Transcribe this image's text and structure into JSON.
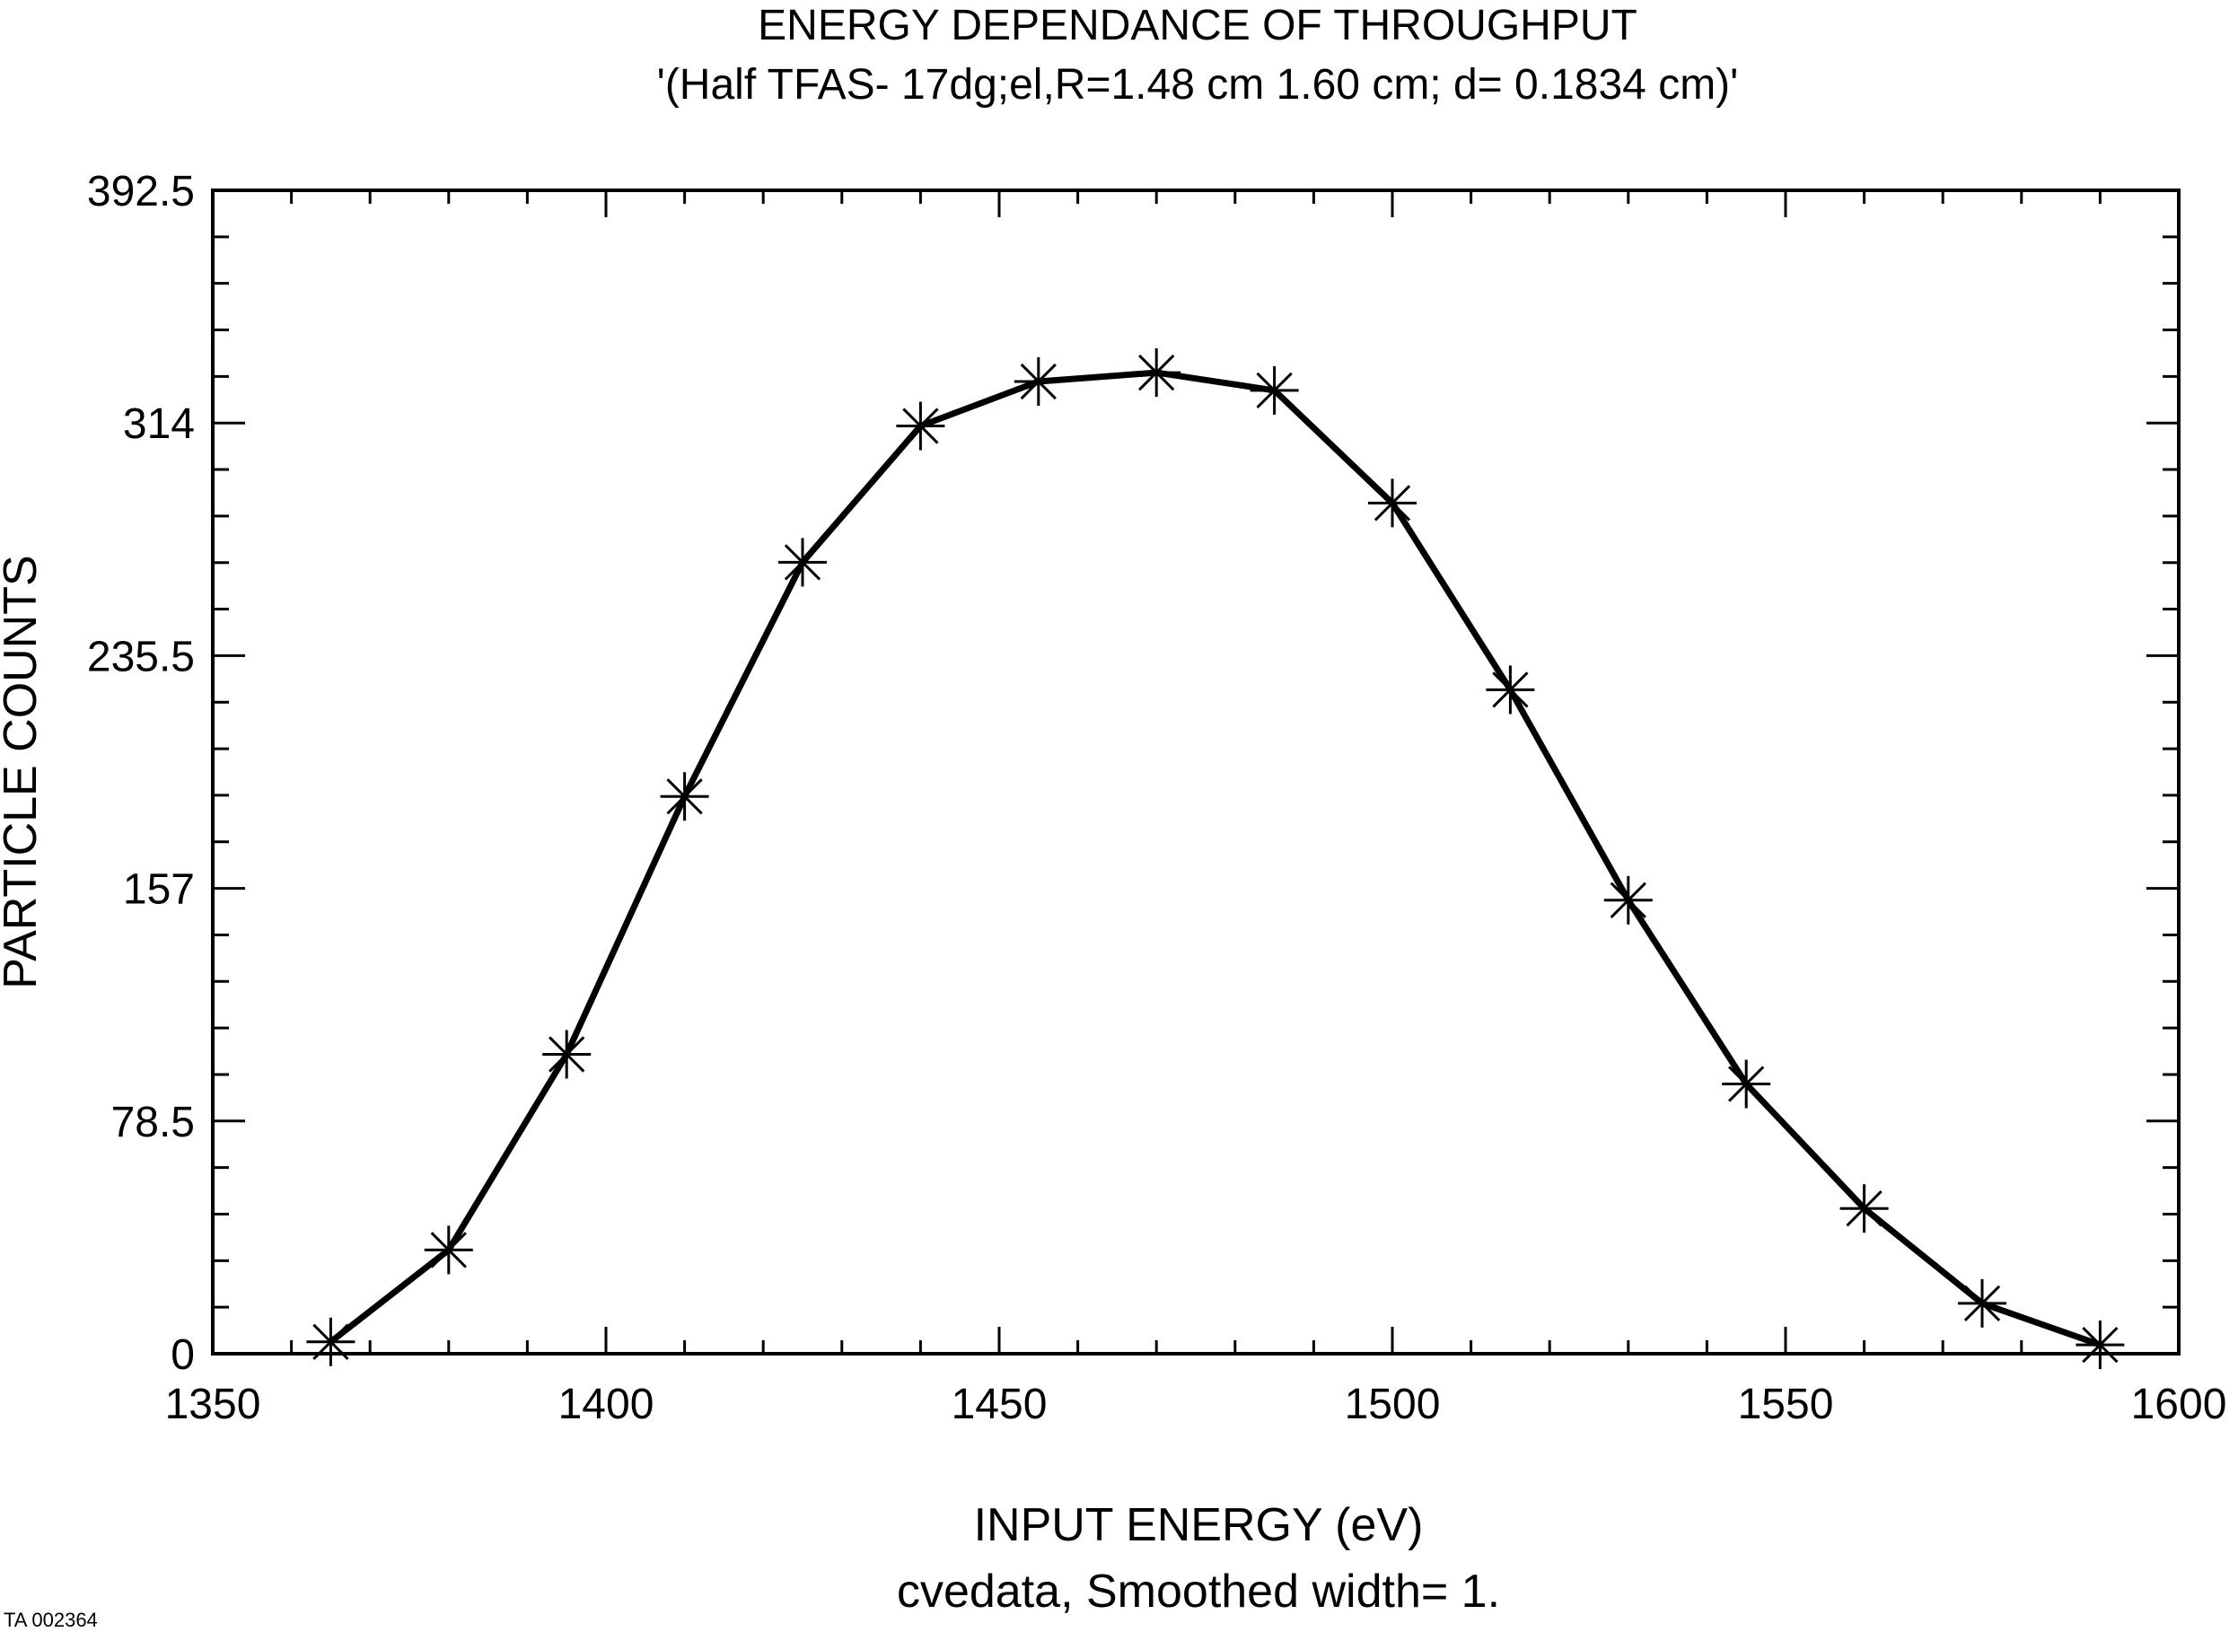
{
  "chart_data": {
    "type": "line",
    "title": "ENERGY DEPENDANCE OF THROUGHPUT",
    "subtitle": "'(Half TFAS- 17dg;el,R=1.48 cm 1.60 cm; d= 0.1834 cm)'",
    "xlabel": "INPUT ENERGY (eV)",
    "xlabel_sub": "cvedata, Smoothed width= 1.",
    "ylabel": "PARTICLE COUNTS",
    "xlim": [
      1350,
      1600
    ],
    "ylim": [
      0,
      392.5
    ],
    "x_ticks": [
      "1350",
      "1400",
      "1450",
      "1500",
      "1550",
      "1600"
    ],
    "y_ticks": [
      "0",
      "78.5",
      "157",
      "235.5",
      "314",
      "392.5"
    ],
    "x_tick_values": [
      1350,
      1400,
      1450,
      1500,
      1550,
      1600
    ],
    "y_tick_values": [
      0,
      78.5,
      157,
      235.5,
      314,
      392.5
    ],
    "x_minor_step": 10,
    "y_minor_step": 15.7,
    "series": [
      {
        "name": "throughput",
        "marker": "asterisk",
        "x": [
          1365,
          1380,
          1395,
          1410,
          1425,
          1440,
          1455,
          1470,
          1485,
          1500,
          1515,
          1530,
          1545,
          1560,
          1575,
          1590
        ],
        "values": [
          4,
          35,
          101,
          188,
          267,
          313,
          328,
          331,
          325,
          287,
          224,
          153,
          91,
          49,
          17,
          3
        ]
      }
    ]
  },
  "footnote": "TA 002364"
}
